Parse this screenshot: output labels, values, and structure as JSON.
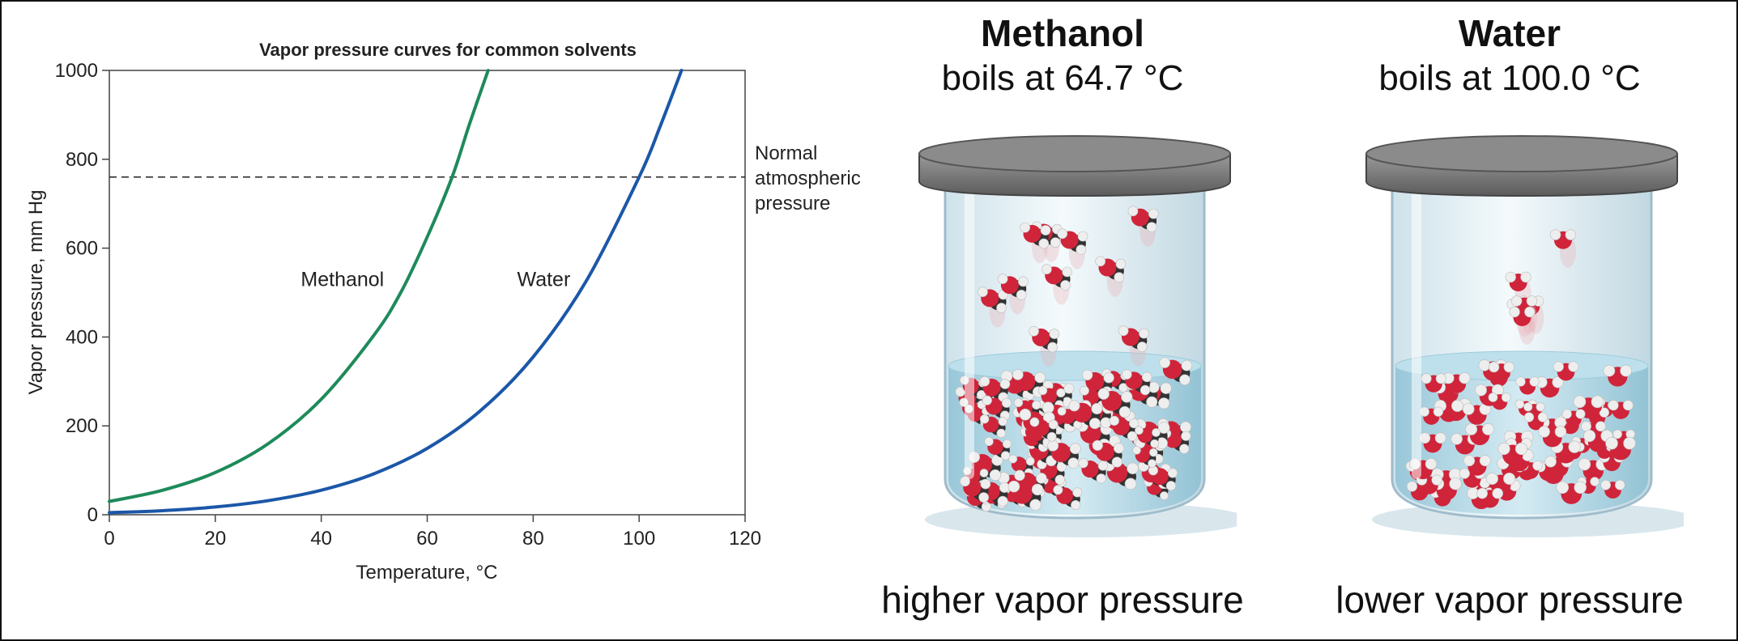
{
  "chart_data": {
    "type": "line",
    "title": "Vapor pressure curves for common solvents",
    "xlabel": "Temperature, °C",
    "ylabel": "Vapor pressure, mm Hg",
    "xlim": [
      0,
      120
    ],
    "ylim": [
      0,
      1000
    ],
    "xticks": [
      0,
      20,
      40,
      60,
      80,
      100,
      120
    ],
    "yticks": [
      0,
      200,
      400,
      600,
      800,
      1000
    ],
    "grid": false,
    "reference_line": {
      "y": 760,
      "label": [
        "Normal",
        "atmospheric",
        "pressure"
      ],
      "style": "dashed"
    },
    "series": [
      {
        "name": "Methanol",
        "color": "#1e8a5a",
        "x": [
          0,
          10,
          20,
          30,
          40,
          50,
          55,
          60,
          64.7,
          68,
          71.5
        ],
        "y": [
          30,
          55,
          95,
          160,
          260,
          405,
          500,
          625,
          760,
          880,
          1000
        ]
      },
      {
        "name": "Water",
        "color": "#1b57a8",
        "x": [
          0,
          10,
          20,
          30,
          40,
          50,
          60,
          70,
          80,
          90,
          100,
          104,
          108
        ],
        "y": [
          4.6,
          9.2,
          17.5,
          31.8,
          55.3,
          92.5,
          149.4,
          233.7,
          355.1,
          525.8,
          760,
          875,
          1000
        ]
      }
    ],
    "series_label_positions": [
      {
        "name": "Methanol",
        "x": 44,
        "y": 515
      },
      {
        "name": "Water",
        "x": 82,
        "y": 515
      }
    ]
  },
  "jars": [
    {
      "name": "Methanol",
      "subtitle": "boils at 64.7 °C",
      "caption": "higher vapor pressure",
      "vapor_molecules": 10,
      "liquid_molecules": 70
    },
    {
      "name": "Water",
      "subtitle": "boils at 100.0 °C",
      "caption": "lower vapor pressure",
      "vapor_molecules": 6,
      "liquid_molecules": 70
    }
  ],
  "colors": {
    "oxygen": "#d0243a",
    "hydrogen": "#eeeeee",
    "carbon": "#333333",
    "liquid": "#a9d4e3",
    "lid": "#5b5b5b"
  }
}
